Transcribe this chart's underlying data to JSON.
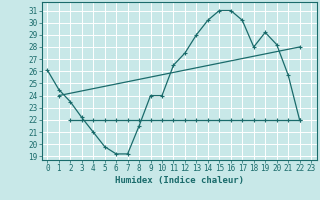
{
  "title": "",
  "xlabel": "Humidex (Indice chaleur)",
  "bg_color": "#c8e8e8",
  "grid_color": "#ffffff",
  "line_color": "#1a6b6b",
  "xlim": [
    -0.5,
    23.5
  ],
  "ylim": [
    18.7,
    31.7
  ],
  "yticks": [
    19,
    20,
    21,
    22,
    23,
    24,
    25,
    26,
    27,
    28,
    29,
    30,
    31
  ],
  "xticks": [
    0,
    1,
    2,
    3,
    4,
    5,
    6,
    7,
    8,
    9,
    10,
    11,
    12,
    13,
    14,
    15,
    16,
    17,
    18,
    19,
    20,
    21,
    22,
    23
  ],
  "xticklabels": [
    "0",
    "1",
    "2",
    "3",
    "4",
    "5",
    "6",
    "7",
    "8",
    "9",
    "10",
    "11",
    "12",
    "13",
    "14",
    "15",
    "16",
    "17",
    "18",
    "19",
    "20",
    "21",
    "22",
    "23"
  ],
  "curve1_x": [
    0,
    1,
    2,
    3,
    4,
    5,
    6,
    7,
    8,
    9,
    10,
    11,
    12,
    13,
    14,
    15,
    16,
    17,
    18,
    19,
    20,
    21,
    22
  ],
  "curve1_y": [
    26.1,
    24.5,
    23.5,
    22.2,
    21.0,
    19.8,
    19.2,
    19.2,
    21.5,
    24.0,
    24.0,
    26.5,
    27.5,
    29.0,
    30.2,
    31.0,
    31.0,
    30.2,
    28.0,
    29.2,
    28.2,
    25.7,
    22.0
  ],
  "curve2_x": [
    2,
    3,
    4,
    5,
    6,
    7,
    8,
    9,
    10,
    11,
    12,
    13,
    14,
    15,
    16,
    17,
    18,
    19,
    20,
    21,
    22
  ],
  "curve2_y": [
    22.0,
    22.0,
    22.0,
    22.0,
    22.0,
    22.0,
    22.0,
    22.0,
    22.0,
    22.0,
    22.0,
    22.0,
    22.0,
    22.0,
    22.0,
    22.0,
    22.0,
    22.0,
    22.0,
    22.0,
    22.0
  ],
  "curve3_x": [
    1,
    22
  ],
  "curve3_y": [
    24.0,
    28.0
  ],
  "tick_fontsize": 5.5,
  "label_fontsize": 6.5
}
